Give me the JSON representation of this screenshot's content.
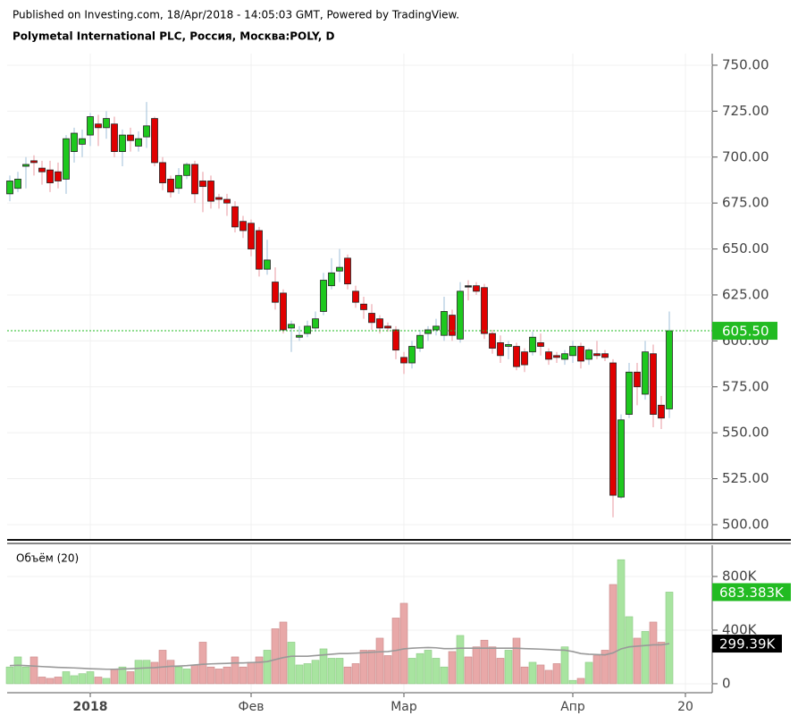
{
  "header": {
    "published": "Published on Investing.com, 18/Apr/2018 - 14:05:03 GMT, Powered by TradingView.",
    "instrument": "Polymetal International PLC, Россия, Москва:POLY, D"
  },
  "chart_data": {
    "type": "candlestick",
    "categories": [
      null,
      null,
      null,
      null,
      null,
      null,
      null,
      null,
      null,
      null,
      "2018",
      null,
      null,
      null,
      null,
      null,
      null,
      null,
      null,
      null,
      null,
      null,
      null,
      null,
      null,
      null,
      null,
      null,
      null,
      null,
      "Фев",
      null,
      null,
      null,
      null,
      null,
      null,
      null,
      null,
      null,
      null,
      null,
      null,
      null,
      null,
      null,
      null,
      null,
      null,
      "Мар",
      null,
      null,
      null,
      null,
      null,
      null,
      null,
      null,
      null,
      null,
      null,
      null,
      null,
      null,
      null,
      null,
      null,
      null,
      null,
      null,
      "Апр",
      null,
      null,
      null,
      null,
      null,
      null,
      null,
      null,
      null,
      null,
      null,
      null,
      null,
      "20"
    ],
    "open": [
      680,
      683,
      695,
      698,
      694,
      693,
      692,
      688,
      703,
      707,
      712,
      718,
      716,
      718,
      703,
      712,
      706,
      711,
      721,
      697,
      688,
      683,
      690,
      696,
      687,
      687,
      678,
      677,
      673,
      665,
      664,
      660,
      639,
      632,
      626,
      607,
      602,
      604,
      607,
      616,
      630,
      638,
      645,
      627,
      620,
      615,
      612,
      608,
      606,
      591,
      588,
      596,
      604,
      606,
      603,
      614,
      601,
      630,
      630,
      629,
      604,
      599,
      597,
      597,
      594,
      594,
      599,
      594,
      592,
      590,
      592,
      597,
      590,
      593,
      593,
      588,
      515,
      560,
      583,
      571,
      593,
      565,
      563,
      null,
      null
    ],
    "high": [
      690,
      692,
      700,
      701,
      698,
      698,
      697,
      712,
      716,
      715,
      724,
      723,
      725,
      722,
      715,
      716,
      714,
      730,
      722,
      700,
      690,
      694,
      697,
      698,
      692,
      690,
      680,
      680,
      676,
      668,
      666,
      662,
      655,
      640,
      628,
      611,
      608,
      611,
      616,
      637,
      645,
      650,
      647,
      630,
      624,
      620,
      614,
      610,
      608,
      594,
      600,
      606,
      608,
      612,
      624,
      617,
      632,
      633,
      632,
      631,
      606,
      603,
      600,
      599,
      596,
      605,
      604,
      596,
      594,
      595,
      600,
      599,
      596,
      600,
      595,
      590,
      560,
      588,
      588,
      600,
      598,
      570,
      616,
      null,
      null
    ],
    "low": [
      676,
      681,
      683,
      690,
      685,
      681,
      683,
      680,
      697,
      700,
      706,
      706,
      710,
      700,
      695,
      703,
      703,
      705,
      695,
      682,
      678,
      680,
      688,
      675,
      670,
      672,
      672,
      668,
      659,
      656,
      646,
      635,
      636,
      617,
      604,
      594,
      600,
      602,
      605,
      614,
      628,
      632,
      628,
      618,
      612,
      606,
      604,
      605,
      590,
      582,
      585,
      594,
      600,
      603,
      600,
      600,
      599,
      622,
      625,
      601,
      593,
      588,
      590,
      584,
      583,
      592,
      592,
      587,
      588,
      587,
      588,
      585,
      587,
      590,
      589,
      504,
      514,
      558,
      565,
      568,
      553,
      552,
      558,
      null,
      null
    ],
    "close": [
      687,
      688,
      696,
      697,
      692,
      686,
      687,
      710,
      713,
      710,
      722,
      716,
      721,
      703,
      712,
      709,
      710,
      717,
      697,
      686,
      681,
      690,
      696,
      680,
      684,
      676,
      677,
      675,
      662,
      660,
      650,
      639,
      644,
      621,
      606,
      609,
      603,
      608,
      612,
      633,
      637,
      640,
      631,
      621,
      617,
      610,
      607,
      607,
      595,
      588,
      597,
      603,
      606,
      608,
      616,
      603,
      627,
      630,
      627,
      604,
      596,
      592,
      598,
      586,
      587,
      602,
      597,
      590,
      591,
      593,
      597,
      589,
      595,
      592,
      591,
      516,
      557,
      583,
      575,
      594,
      560,
      558,
      605.5,
      null,
      null
    ],
    "last_label": "605.50",
    "ylim": [
      492.2,
      756.3
    ],
    "yticks": [
      {
        "value": 500,
        "label": "500.00"
      },
      {
        "value": 525,
        "label": "525.00"
      },
      {
        "value": 550,
        "label": "550.00"
      },
      {
        "value": 575,
        "label": "575.00"
      },
      {
        "value": 600,
        "label": "600.00"
      },
      {
        "value": 625,
        "label": "625.00"
      },
      {
        "value": 650,
        "label": "650.00"
      },
      {
        "value": 675,
        "label": "675.00"
      },
      {
        "value": 700,
        "label": "700.00"
      },
      {
        "value": 725,
        "label": "725.00"
      },
      {
        "value": 750,
        "label": "750.00"
      }
    ],
    "up_color": "#1ec81e",
    "down_color": "#e00000",
    "up_wick": "#9fbfd8",
    "down_wick": "#e89aa0",
    "last_color": "#22bb22",
    "grid": true,
    "volume_title": "Объём (20)",
    "volume": [
      125,
      200,
      125,
      200,
      50,
      40,
      50,
      90,
      60,
      75,
      90,
      50,
      40,
      110,
      125,
      90,
      175,
      175,
      160,
      250,
      175,
      125,
      110,
      140,
      310,
      125,
      110,
      125,
      200,
      125,
      160,
      200,
      250,
      410,
      460,
      310,
      140,
      150,
      175,
      260,
      190,
      190,
      125,
      150,
      250,
      250,
      340,
      210,
      490,
      600,
      190,
      225,
      250,
      190,
      125,
      240,
      360,
      200,
      275,
      325,
      275,
      190,
      250,
      340,
      125,
      160,
      140,
      100,
      150,
      275,
      25,
      40,
      160,
      210,
      250,
      740,
      925,
      500,
      340,
      390,
      460,
      310,
      683.383,
      null,
      null
    ],
    "volume_label": "683.383K",
    "ma": [
      135,
      138,
      135,
      132,
      128,
      125,
      122,
      120,
      118,
      115,
      112,
      110,
      108,
      108,
      110,
      112,
      115,
      118,
      120,
      125,
      130,
      132,
      135,
      140,
      145,
      148,
      150,
      152,
      155,
      155,
      158,
      160,
      165,
      180,
      195,
      205,
      205,
      205,
      210,
      215,
      220,
      225,
      225,
      228,
      232,
      235,
      238,
      240,
      248,
      260,
      265,
      268,
      270,
      268,
      262,
      262,
      265,
      265,
      265,
      265,
      265,
      265,
      265,
      265,
      262,
      260,
      258,
      255,
      252,
      250,
      240,
      225,
      220,
      218,
      215,
      230,
      260,
      275,
      280,
      285,
      290,
      290,
      299.39,
      null,
      null
    ],
    "ma_label": "299.39K",
    "ma_color": "#999999",
    "vlim": [
      -67,
      1033
    ],
    "vticks": [
      0,
      {
        "value": 400,
        "label": "400K"
      },
      {
        "value": 800,
        "label": "800K"
      }
    ],
    "vol_up_color": "#a8e4a0",
    "vol_down_color": "#e8a8a8"
  }
}
